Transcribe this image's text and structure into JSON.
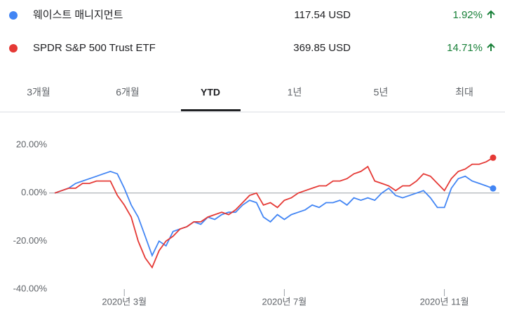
{
  "quotes": [
    {
      "price": "117.54 USD",
      "change": "1.92%"
    },
    {
      "price": "369.85 USD",
      "change": "14.71%"
    }
  ],
  "change_color": "#188038",
  "tabs": {
    "items": [
      "3개월",
      "6개월",
      "YTD",
      "1년",
      "5년",
      "최대"
    ],
    "selected": 2
  },
  "chart_data": {
    "type": "line",
    "categories": [
      null,
      null,
      null,
      null,
      null,
      null,
      null,
      null,
      null,
      null,
      "2020년 3월",
      null,
      null,
      null,
      null,
      null,
      null,
      null,
      null,
      null,
      null,
      null,
      null,
      null,
      null,
      null,
      null,
      null,
      null,
      null,
      null,
      null,
      null,
      "2020년 7월",
      null,
      null,
      null,
      null,
      null,
      null,
      null,
      null,
      null,
      null,
      null,
      null,
      null,
      null,
      null,
      null,
      null,
      null,
      null,
      null,
      null,
      null,
      "2020년 11월",
      null,
      null,
      null,
      null,
      null,
      null,
      null
    ],
    "series": [
      {
        "name": "웨이스트 매니지먼트",
        "color": "#4285f4",
        "values": [
          0,
          1,
          2,
          4,
          5,
          6,
          7,
          8,
          9,
          8,
          2,
          -5,
          -10,
          -18,
          -26,
          -20,
          -22,
          -16,
          -15,
          -14,
          -12,
          -13,
          -10,
          -11,
          -9,
          -8,
          -8,
          -5,
          -3,
          -4,
          -10,
          -12,
          -9,
          -11,
          -9,
          -8,
          -7,
          -5,
          -6,
          -4,
          -4,
          -3,
          -5,
          -2,
          -3,
          -2,
          -3,
          0,
          2,
          -1,
          -2,
          -1,
          0,
          1,
          -2,
          -6,
          -6,
          2,
          6,
          7,
          5,
          4,
          3,
          1.92
        ]
      },
      {
        "name": "SPDR S&P 500 Trust ETF",
        "color": "#e53935",
        "values": [
          0,
          1,
          2,
          2,
          4,
          4,
          5,
          5,
          5,
          -1,
          -5,
          -10,
          -20,
          -27,
          -31,
          -24,
          -20,
          -18,
          -15,
          -14,
          -12,
          -12,
          -10,
          -9,
          -8,
          -9,
          -7,
          -4,
          -1,
          0,
          -5,
          -4,
          -6,
          -3,
          -2,
          0,
          1,
          2,
          3,
          3,
          5,
          5,
          6,
          8,
          9,
          11,
          5,
          4,
          3,
          1,
          3,
          3,
          5,
          8,
          7,
          4,
          1,
          6,
          9,
          10,
          12,
          12,
          13,
          14.71
        ]
      }
    ],
    "ylim": [
      -40,
      25
    ],
    "yticks": [
      {
        "value": 20,
        "label": "20.00%"
      },
      {
        "value": 0,
        "label": "0.00%"
      },
      {
        "value": -20,
        "label": "-20.00%"
      },
      {
        "value": -40,
        "label": "-40.00%"
      }
    ],
    "reference_line": 0,
    "end_markers": true
  }
}
